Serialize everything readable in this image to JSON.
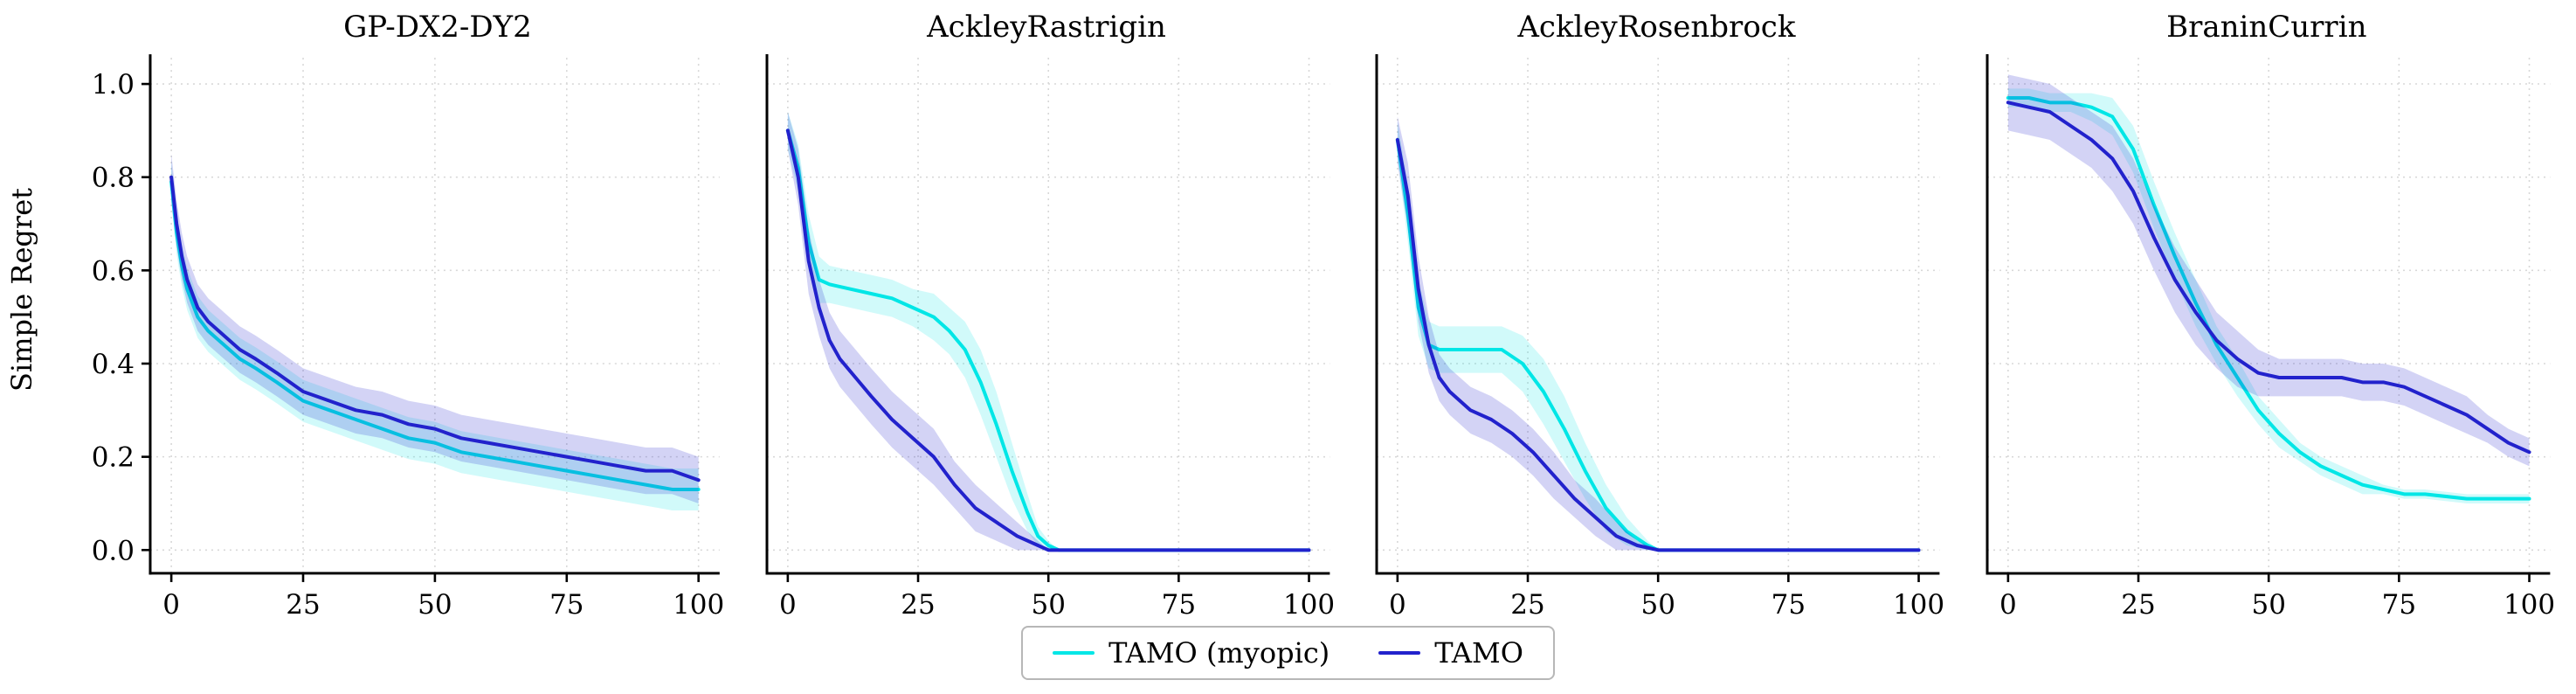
{
  "chart_data": {
    "type": "line",
    "ylabel": "Simple Regret",
    "xlim": [
      -4,
      104
    ],
    "ylim": [
      -0.05,
      1.06
    ],
    "xticks": [
      0,
      25,
      50,
      75,
      100
    ],
    "yticks": [
      0.0,
      0.2,
      0.4,
      0.6,
      0.8,
      1.0
    ],
    "grid": true,
    "legend_position": "bottom-center",
    "legend": [
      {
        "label": "TAMO (myopic)",
        "color": "#00E6E6"
      },
      {
        "label": "TAMO",
        "color": "#2222CC"
      }
    ],
    "charts": [
      {
        "title": "GP-DX2-DY2",
        "series": [
          {
            "name": "TAMO (myopic)",
            "color": "#00E6E6",
            "band_opacity": 0.18,
            "x": [
              0,
              1,
              2,
              3,
              5,
              7,
              10,
              13,
              16,
              20,
              25,
              30,
              35,
              40,
              45,
              50,
              55,
              60,
              65,
              70,
              75,
              80,
              85,
              90,
              95,
              100
            ],
            "y": [
              0.79,
              0.68,
              0.61,
              0.56,
              0.5,
              0.47,
              0.44,
              0.41,
              0.39,
              0.36,
              0.32,
              0.3,
              0.28,
              0.26,
              0.24,
              0.23,
              0.21,
              0.2,
              0.19,
              0.18,
              0.17,
              0.16,
              0.15,
              0.14,
              0.13,
              0.13
            ],
            "w": 0.045
          },
          {
            "name": "TAMO",
            "color": "#2222CC",
            "band_opacity": 0.2,
            "x": [
              0,
              1,
              2,
              3,
              5,
              7,
              10,
              13,
              16,
              20,
              25,
              30,
              35,
              40,
              45,
              50,
              55,
              60,
              65,
              70,
              75,
              80,
              85,
              90,
              95,
              100
            ],
            "y": [
              0.8,
              0.7,
              0.63,
              0.58,
              0.52,
              0.49,
              0.46,
              0.43,
              0.41,
              0.38,
              0.34,
              0.32,
              0.3,
              0.29,
              0.27,
              0.26,
              0.24,
              0.23,
              0.22,
              0.21,
              0.2,
              0.19,
              0.18,
              0.17,
              0.17,
              0.15
            ],
            "w": 0.05
          }
        ]
      },
      {
        "title": "AckleyRastrigin",
        "series": [
          {
            "name": "TAMO (myopic)",
            "color": "#00E6E6",
            "band_opacity": 0.18,
            "x": [
              0,
              2,
              4,
              6,
              8,
              12,
              16,
              20,
              24,
              28,
              31,
              34,
              37,
              40,
              43,
              46,
              48,
              50,
              52,
              100
            ],
            "y": [
              0.9,
              0.82,
              0.66,
              0.58,
              0.57,
              0.56,
              0.55,
              0.54,
              0.52,
              0.5,
              0.47,
              0.43,
              0.36,
              0.27,
              0.17,
              0.08,
              0.03,
              0.01,
              0.0,
              0.0
            ],
            "w": [
              0.04,
              0.05,
              0.06,
              0.05,
              0.04,
              0.04,
              0.04,
              0.04,
              0.04,
              0.05,
              0.05,
              0.06,
              0.07,
              0.07,
              0.06,
              0.04,
              0.02,
              0.01,
              0.0,
              0.0
            ]
          },
          {
            "name": "TAMO",
            "color": "#2222CC",
            "band_opacity": 0.2,
            "x": [
              0,
              2,
              4,
              6,
              8,
              10,
              13,
              16,
              20,
              24,
              28,
              32,
              36,
              40,
              44,
              48,
              50,
              100
            ],
            "y": [
              0.9,
              0.8,
              0.62,
              0.52,
              0.45,
              0.41,
              0.37,
              0.33,
              0.28,
              0.24,
              0.2,
              0.14,
              0.09,
              0.06,
              0.03,
              0.01,
              0.0,
              0.0
            ],
            "w": [
              0.04,
              0.06,
              0.07,
              0.06,
              0.06,
              0.06,
              0.06,
              0.06,
              0.06,
              0.06,
              0.06,
              0.05,
              0.05,
              0.04,
              0.03,
              0.01,
              0.0,
              0.0
            ]
          }
        ]
      },
      {
        "title": "AckleyRosenbrock",
        "series": [
          {
            "name": "TAMO (myopic)",
            "color": "#00E6E6",
            "band_opacity": 0.18,
            "x": [
              0,
              2,
              4,
              6,
              8,
              12,
              16,
              20,
              24,
              28,
              32,
              36,
              40,
              44,
              48,
              50,
              100
            ],
            "y": [
              0.88,
              0.72,
              0.52,
              0.44,
              0.43,
              0.43,
              0.43,
              0.43,
              0.4,
              0.34,
              0.26,
              0.17,
              0.09,
              0.04,
              0.01,
              0.0,
              0.0
            ],
            "w": [
              0.04,
              0.06,
              0.06,
              0.05,
              0.05,
              0.05,
              0.05,
              0.05,
              0.06,
              0.07,
              0.07,
              0.06,
              0.05,
              0.03,
              0.01,
              0.0,
              0.0
            ]
          },
          {
            "name": "TAMO",
            "color": "#2222CC",
            "band_opacity": 0.2,
            "x": [
              0,
              2,
              4,
              6,
              8,
              10,
              14,
              18,
              22,
              26,
              30,
              34,
              38,
              42,
              46,
              50,
              100
            ],
            "y": [
              0.88,
              0.76,
              0.56,
              0.44,
              0.37,
              0.34,
              0.3,
              0.28,
              0.25,
              0.21,
              0.16,
              0.11,
              0.07,
              0.03,
              0.01,
              0.0,
              0.0
            ],
            "w": [
              0.05,
              0.07,
              0.07,
              0.06,
              0.05,
              0.05,
              0.05,
              0.05,
              0.05,
              0.05,
              0.05,
              0.04,
              0.04,
              0.03,
              0.01,
              0.0,
              0.0
            ]
          }
        ]
      },
      {
        "title": "BraninCurrin",
        "series": [
          {
            "name": "TAMO (myopic)",
            "color": "#00E6E6",
            "band_opacity": 0.18,
            "x": [
              0,
              4,
              8,
              12,
              16,
              20,
              24,
              28,
              32,
              36,
              40,
              44,
              48,
              52,
              56,
              60,
              64,
              68,
              72,
              76,
              80,
              88,
              100
            ],
            "y": [
              0.97,
              0.97,
              0.96,
              0.96,
              0.95,
              0.93,
              0.86,
              0.74,
              0.63,
              0.53,
              0.44,
              0.37,
              0.3,
              0.25,
              0.21,
              0.18,
              0.16,
              0.14,
              0.13,
              0.12,
              0.12,
              0.11,
              0.11
            ],
            "w": [
              0.02,
              0.02,
              0.02,
              0.02,
              0.03,
              0.04,
              0.05,
              0.05,
              0.05,
              0.05,
              0.04,
              0.04,
              0.03,
              0.03,
              0.02,
              0.02,
              0.02,
              0.02,
              0.01,
              0.01,
              0.01,
              0.01,
              0.01
            ]
          },
          {
            "name": "TAMO",
            "color": "#2222CC",
            "band_opacity": 0.2,
            "x": [
              0,
              4,
              8,
              12,
              16,
              20,
              24,
              28,
              32,
              36,
              40,
              44,
              48,
              52,
              56,
              60,
              64,
              68,
              72,
              76,
              80,
              84,
              88,
              92,
              96,
              100
            ],
            "y": [
              0.96,
              0.95,
              0.94,
              0.91,
              0.88,
              0.84,
              0.77,
              0.67,
              0.58,
              0.51,
              0.45,
              0.41,
              0.38,
              0.37,
              0.37,
              0.37,
              0.37,
              0.36,
              0.36,
              0.35,
              0.33,
              0.31,
              0.29,
              0.26,
              0.23,
              0.21
            ],
            "w": [
              0.06,
              0.06,
              0.06,
              0.06,
              0.06,
              0.07,
              0.07,
              0.07,
              0.07,
              0.07,
              0.06,
              0.06,
              0.05,
              0.04,
              0.04,
              0.04,
              0.04,
              0.04,
              0.04,
              0.04,
              0.04,
              0.04,
              0.04,
              0.03,
              0.03,
              0.03
            ]
          }
        ]
      }
    ]
  }
}
